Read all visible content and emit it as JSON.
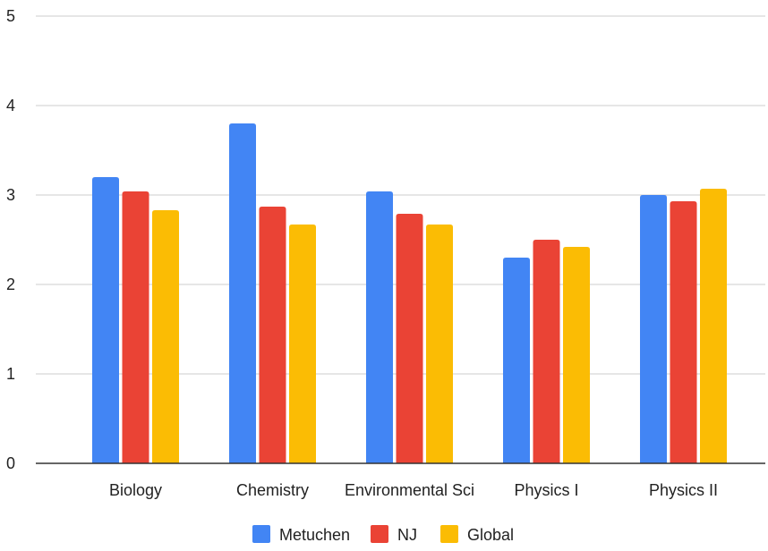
{
  "chart_data": {
    "type": "bar",
    "categories": [
      "Biology",
      "Chemistry",
      "Environmental Sci",
      "Physics I",
      "Physics II"
    ],
    "series": [
      {
        "name": "Metuchen",
        "color": "#4285F4",
        "values": [
          3.2,
          3.8,
          3.04,
          2.3,
          3.0
        ]
      },
      {
        "name": "NJ",
        "color": "#EA4335",
        "values": [
          3.04,
          2.87,
          2.79,
          2.5,
          2.93
        ]
      },
      {
        "name": "Global",
        "color": "#FBBC04",
        "values": [
          2.83,
          2.67,
          2.67,
          2.42,
          3.07
        ]
      }
    ],
    "ylim": [
      0,
      5
    ],
    "yticks": [
      "0",
      "1",
      "2",
      "3",
      "4",
      "5"
    ],
    "grid": true,
    "legend_position": "bottom"
  }
}
